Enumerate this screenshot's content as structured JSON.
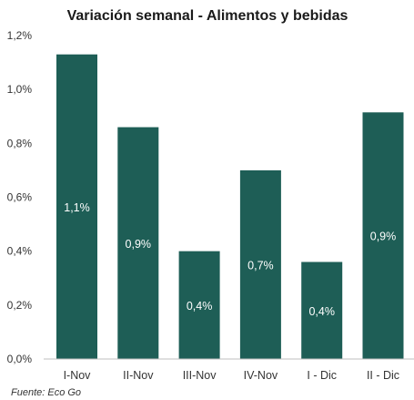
{
  "chart_data": {
    "type": "bar",
    "title": "Variación semanal - Alimentos y bebidas",
    "categories": [
      "I-Nov",
      "II-Nov",
      "III-Nov",
      "IV-Nov",
      "I - Dic",
      "II - Dic"
    ],
    "values": [
      1.13,
      0.86,
      0.4,
      0.7,
      0.36,
      0.915
    ],
    "data_labels": [
      "1,1%",
      "0,9%",
      "0,4%",
      "0,7%",
      "0,4%",
      "0,9%"
    ],
    "ylim": [
      0,
      1.2
    ],
    "yticks": [
      0,
      0.2,
      0.4,
      0.6,
      0.8,
      1.0,
      1.2
    ],
    "ytick_labels": [
      "0,0%",
      "0,2%",
      "0,4%",
      "0,6%",
      "0,8%",
      "1,0%",
      "1,2%"
    ],
    "xlabel": "",
    "ylabel": "",
    "grid": false,
    "legend": "none",
    "bar_color": "#1e5e56",
    "source": "Fuente: Eco Go"
  }
}
